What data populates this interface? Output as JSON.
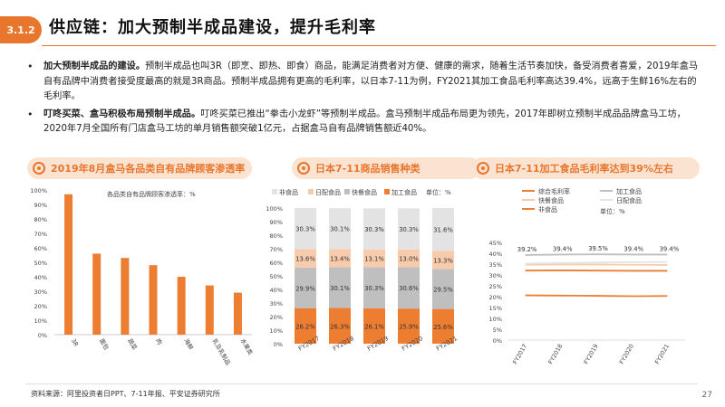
{
  "section": {
    "number": "3.1.2",
    "title": "供应链：加大预制半成品建设，提升毛利率"
  },
  "bullets": [
    {
      "bold": "加大预制半成品的建设。",
      "text": "预制半成品也叫3R（即烹、即热、即食）商品，能满足消费者对方便、健康的需求，随着生活节奏加快，备受消费者喜爱，2019年盒马自有品牌中消费者接受度最高的就是3R商品。预制半成品拥有更高的毛利率，以日本7-11为例，FY2021其加工食品毛利率高达39.4%，远高于生鲜16%左右的毛利率。"
    },
    {
      "bold": "叮咚买菜、盒马积极布局预制半成品。",
      "text": "叮咚买菜已推出“拳击小龙虾”等预制半成品。盒马预制半成品布局更为领先，2017年即树立预制半成品品牌盒马工坊，2020年7月全国所有门店盒马工坊的单月销售额突破1亿元，占据盒马自有品牌销售额近40%。"
    }
  ],
  "panels": {
    "left_title": "2019年8月盒马各品类自有品牌顾客渗透率",
    "mid_title": "日本7-11商品销售种类",
    "right_title": "日本7-11加工食品毛利率达到39%左右"
  },
  "chart_data": [
    {
      "type": "bar",
      "title": "2019年8月盒马各品类自有品牌顾客渗透率",
      "legend": "各品类自有品牌顾客渗透率：%",
      "categories": [
        "3R",
        "面包",
        "蔬菜",
        "肉",
        "海鲜",
        "乳及乳制品",
        "水果类"
      ],
      "values": [
        97,
        56,
        53,
        48,
        40,
        34,
        29
      ],
      "yticks": [
        "0%",
        "10%",
        "20%",
        "30%",
        "40%",
        "50%",
        "60%",
        "70%",
        "80%",
        "90%",
        "100%"
      ],
      "ylim": [
        0,
        100
      ],
      "color": "#ed7d31"
    },
    {
      "type": "bar",
      "stacked": true,
      "title": "日本7-11商品销售种类",
      "unit": "单位：%",
      "categories": [
        "FY2017",
        "FY2018",
        "FY2019",
        "FY2020",
        "FY2021"
      ],
      "series": [
        {
          "name": "加工食品",
          "values": [
            26.2,
            26.3,
            26.1,
            25.9,
            25.6
          ],
          "color": "#ed7d31"
        },
        {
          "name": "快餐食品",
          "values": [
            29.9,
            30.1,
            30.3,
            30.6,
            29.5
          ],
          "color": "#bfbfbf"
        },
        {
          "name": "日配食品",
          "values": [
            13.6,
            13.4,
            13.1,
            13.0,
            13.3
          ],
          "color": "#f8cbad"
        },
        {
          "name": "非食品",
          "values": [
            30.3,
            30.1,
            30.3,
            30.3,
            31.6
          ],
          "color": "#e3e3e3"
        }
      ],
      "yticks": [
        "0%",
        "10%",
        "20%",
        "30%",
        "40%",
        "50%",
        "60%",
        "70%",
        "80%",
        "90%",
        "100%"
      ],
      "ylim": [
        0,
        100
      ]
    },
    {
      "type": "line",
      "title": "日本7-11加工食品毛利率达到39%左右",
      "unit": "单位：%",
      "categories": [
        "FY2017",
        "FY2018",
        "FY2019",
        "FY2020",
        "FY2021"
      ],
      "series": [
        {
          "name": "综合毛利率",
          "values": [
            32.0,
            32.1,
            32.0,
            31.9,
            31.9
          ],
          "color": "#ed7d31"
        },
        {
          "name": "加工食品",
          "values": [
            39.2,
            39.4,
            39.5,
            39.4,
            39.4
          ],
          "color": "#bfbfbf",
          "labels": [
            "39.2%",
            "39.4%",
            "39.5%",
            "39.4%",
            "39.4%"
          ]
        },
        {
          "name": "快餐食品",
          "values": [
            34.7,
            34.8,
            34.8,
            34.7,
            34.6
          ],
          "color": "#f8cbad"
        },
        {
          "name": "日配食品",
          "values": [
            35.2,
            35.5,
            35.7,
            35.9,
            36.0
          ],
          "color": "#e3e3e3"
        },
        {
          "name": "非食品",
          "values": [
            20.6,
            20.5,
            20.4,
            20.2,
            20.3
          ],
          "color": "#ed7d31"
        }
      ],
      "yticks": [
        "0%",
        "5%",
        "10%",
        "15%",
        "20%",
        "25%",
        "30%",
        "35%",
        "40%",
        "45%"
      ],
      "ylim": [
        0,
        45
      ]
    }
  ],
  "footer": {
    "source": "资料来源：阿里投资者日PPT、7-11年报、平安证券研究所",
    "page": "27"
  }
}
